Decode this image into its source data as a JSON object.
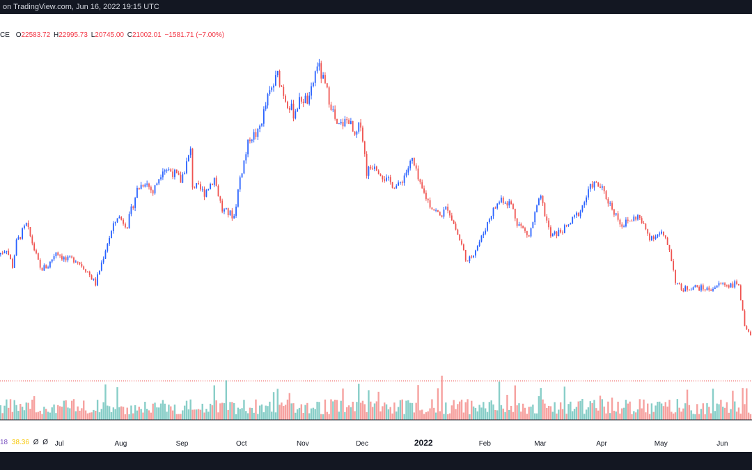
{
  "header": {
    "source_text": "on TradingView.com, Jun 16, 2022 19:15 UTC"
  },
  "ohlc": {
    "symbol_fragment": "CE",
    "open_label": "O",
    "open_value": "22583.72",
    "high_label": "H",
    "high_value": "22995.73",
    "low_label": "L",
    "low_value": "20745.00",
    "close_label": "C",
    "close_value": "21002.01",
    "change": "−1581.71 (−7.00%)"
  },
  "volume_legend": {
    "v1": "18",
    "v2": "38.36",
    "v3": "Ø",
    "v4": "Ø"
  },
  "colors": {
    "up": "#2962ff",
    "down": "#ef5350",
    "vol_up": "#26a69a",
    "vol_down": "#ef5350",
    "background": "#ffffff",
    "frame": "#131722"
  },
  "chart_data": {
    "type": "candlestick",
    "x_labels": [
      "Jul",
      "Aug",
      "Sep",
      "Oct",
      "Nov",
      "Dec",
      "2022",
      "Feb",
      "Mar",
      "Apr",
      "May",
      "Jun"
    ],
    "close_path": [
      [
        "2021-06-01",
        35000
      ],
      [
        "2021-06-05",
        36000
      ],
      [
        "2021-06-08",
        33000
      ],
      [
        "2021-06-10",
        37000
      ],
      [
        "2021-06-15",
        40000
      ],
      [
        "2021-06-18",
        37000
      ],
      [
        "2021-06-22",
        32500
      ],
      [
        "2021-06-26",
        33000
      ],
      [
        "2021-06-30",
        35500
      ],
      [
        "2021-07-05",
        34000
      ],
      [
        "2021-07-10",
        34200
      ],
      [
        "2021-07-15",
        32500
      ],
      [
        "2021-07-20",
        30000
      ],
      [
        "2021-07-26",
        37000
      ],
      [
        "2021-07-31",
        41500
      ],
      [
        "2021-08-05",
        40000
      ],
      [
        "2021-08-10",
        46000
      ],
      [
        "2021-08-14",
        47500
      ],
      [
        "2021-08-18",
        45500
      ],
      [
        "2021-08-23",
        49800
      ],
      [
        "2021-08-28",
        49000
      ],
      [
        "2021-09-01",
        47500
      ],
      [
        "2021-09-06",
        52500
      ],
      [
        "2021-09-07",
        46800
      ],
      [
        "2021-09-13",
        45500
      ],
      [
        "2021-09-18",
        48000
      ],
      [
        "2021-09-22",
        42500
      ],
      [
        "2021-09-28",
        41500
      ],
      [
        "2021-10-01",
        48000
      ],
      [
        "2021-10-06",
        55000
      ],
      [
        "2021-10-10",
        55500
      ],
      [
        "2021-10-15",
        61500
      ],
      [
        "2021-10-20",
        65500
      ],
      [
        "2021-10-24",
        61500
      ],
      [
        "2021-10-28",
        59000
      ],
      [
        "2021-11-01",
        61500
      ],
      [
        "2021-11-05",
        61000
      ],
      [
        "2021-11-09",
        67500
      ],
      [
        "2021-11-12",
        64500
      ],
      [
        "2021-11-16",
        60500
      ],
      [
        "2021-11-19",
        56500
      ],
      [
        "2021-11-25",
        58000
      ],
      [
        "2021-11-28",
        54500
      ],
      [
        "2021-12-01",
        57500
      ],
      [
        "2021-12-04",
        49000
      ],
      [
        "2021-12-08",
        50500
      ],
      [
        "2021-12-14",
        47500
      ],
      [
        "2021-12-20",
        46500
      ],
      [
        "2021-12-27",
        51000
      ],
      [
        "2021-12-31",
        46500
      ],
      [
        "2022-01-05",
        43500
      ],
      [
        "2022-01-10",
        41500
      ],
      [
        "2022-01-14",
        43000
      ],
      [
        "2022-01-21",
        36500
      ],
      [
        "2022-01-24",
        33500
      ],
      [
        "2022-01-31",
        37800
      ],
      [
        "2022-02-05",
        42000
      ],
      [
        "2022-02-10",
        44500
      ],
      [
        "2022-02-15",
        43500
      ],
      [
        "2022-02-18",
        40500
      ],
      [
        "2022-02-24",
        38000
      ],
      [
        "2022-02-28",
        43000
      ],
      [
        "2022-03-02",
        44500
      ],
      [
        "2022-03-07",
        38000
      ],
      [
        "2022-03-15",
        39500
      ],
      [
        "2022-03-22",
        42500
      ],
      [
        "2022-03-28",
        47000
      ],
      [
        "2022-04-01",
        46500
      ],
      [
        "2022-04-06",
        43500
      ],
      [
        "2022-04-12",
        40000
      ],
      [
        "2022-04-20",
        41500
      ],
      [
        "2022-04-26",
        38000
      ],
      [
        "2022-05-02",
        38500
      ],
      [
        "2022-05-06",
        36000
      ],
      [
        "2022-05-09",
        30500
      ],
      [
        "2022-05-12",
        29000
      ],
      [
        "2022-05-18",
        29500
      ],
      [
        "2022-05-26",
        29000
      ],
      [
        "2022-06-01",
        30000
      ],
      [
        "2022-06-05",
        29800
      ],
      [
        "2022-06-10",
        30000
      ],
      [
        "2022-06-13",
        22500
      ],
      [
        "2022-06-16",
        21000
      ]
    ]
  }
}
